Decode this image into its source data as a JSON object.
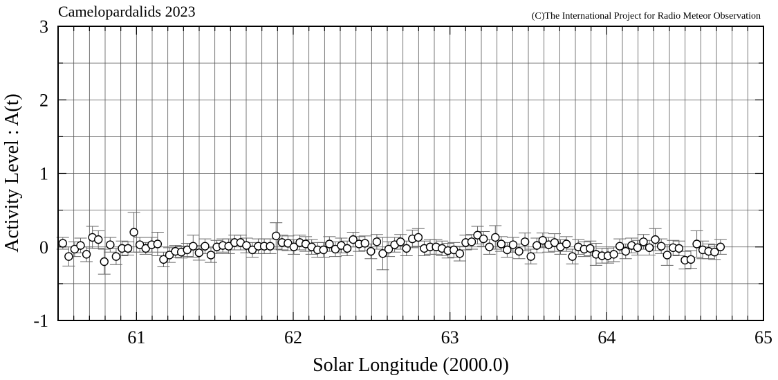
{
  "chart_data": {
    "type": "scatter",
    "title": "Camelopardalids 2023",
    "credit": "(C)The International Project for Radio Meteor Observation",
    "xlabel": "Solar Longitude (2000.0)",
    "ylabel": "Activity Level : A(t)",
    "xlim": [
      60.5,
      65
    ],
    "ylim": [
      -1,
      3
    ],
    "x_ticks": [
      61,
      62,
      63,
      64,
      65
    ],
    "y_ticks": [
      -1,
      0,
      1,
      2,
      3
    ],
    "grid": true,
    "x_start": 60.53,
    "x_step": 0.0378,
    "values": [
      0.05,
      -0.13,
      -0.03,
      0.02,
      -0.1,
      0.13,
      0.1,
      -0.2,
      0.03,
      -0.13,
      -0.02,
      -0.02,
      0.2,
      0.03,
      -0.02,
      0.03,
      0.04,
      -0.17,
      -0.11,
      -0.06,
      -0.07,
      -0.04,
      0.01,
      -0.08,
      0.01,
      -0.11,
      0.0,
      0.02,
      0.01,
      0.06,
      0.06,
      0.02,
      -0.04,
      0.01,
      0.01,
      0.01,
      0.15,
      0.06,
      0.05,
      0.0,
      0.06,
      0.04,
      0.0,
      -0.04,
      -0.04,
      0.04,
      -0.03,
      0.02,
      -0.02,
      0.1,
      0.04,
      0.05,
      -0.06,
      0.07,
      -0.09,
      -0.03,
      0.03,
      0.07,
      -0.02,
      0.11,
      0.13,
      -0.02,
      0.0,
      0.0,
      -0.02,
      -0.05,
      -0.04,
      -0.09,
      0.06,
      0.07,
      0.16,
      0.11,
      0.0,
      0.13,
      0.04,
      -0.04,
      0.03,
      -0.06,
      0.07,
      -0.13,
      0.02,
      0.09,
      0.03,
      0.06,
      0.0,
      0.04,
      -0.13,
      0.0,
      -0.03,
      -0.02,
      -0.1,
      -0.12,
      -0.12,
      -0.1,
      0.01,
      -0.06,
      0.02,
      -0.01,
      0.07,
      -0.01,
      0.1,
      0.01,
      -0.11,
      -0.01,
      -0.02,
      -0.18,
      -0.17,
      0.04,
      -0.04,
      -0.06,
      -0.07,
      0.0
    ],
    "errors": [
      0.08,
      0.13,
      0.1,
      0.1,
      0.1,
      0.15,
      0.12,
      0.17,
      0.1,
      0.11,
      0.1,
      0.09,
      0.27,
      0.1,
      0.08,
      0.1,
      0.16,
      0.1,
      0.1,
      0.08,
      0.08,
      0.09,
      0.15,
      0.1,
      0.1,
      0.1,
      0.09,
      0.09,
      0.1,
      0.1,
      0.1,
      0.1,
      0.1,
      0.1,
      0.1,
      0.1,
      0.18,
      0.1,
      0.1,
      0.1,
      0.1,
      0.1,
      0.1,
      0.1,
      0.1,
      0.1,
      0.1,
      0.1,
      0.1,
      0.1,
      0.1,
      0.1,
      0.1,
      0.1,
      0.22,
      0.1,
      0.1,
      0.1,
      0.1,
      0.12,
      0.12,
      0.1,
      0.1,
      0.1,
      0.1,
      0.1,
      0.1,
      0.1,
      0.1,
      0.1,
      0.12,
      0.1,
      0.1,
      0.16,
      0.1,
      0.1,
      0.1,
      0.1,
      0.12,
      0.1,
      0.1,
      0.1,
      0.1,
      0.12,
      0.1,
      0.1,
      0.1,
      0.1,
      0.1,
      0.1,
      0.15,
      0.1,
      0.1,
      0.1,
      0.1,
      0.1,
      0.1,
      0.1,
      0.1,
      0.1,
      0.15,
      0.1,
      0.14,
      0.1,
      0.1,
      0.12,
      0.12,
      0.18,
      0.12,
      0.1,
      0.1,
      0.1
    ]
  }
}
